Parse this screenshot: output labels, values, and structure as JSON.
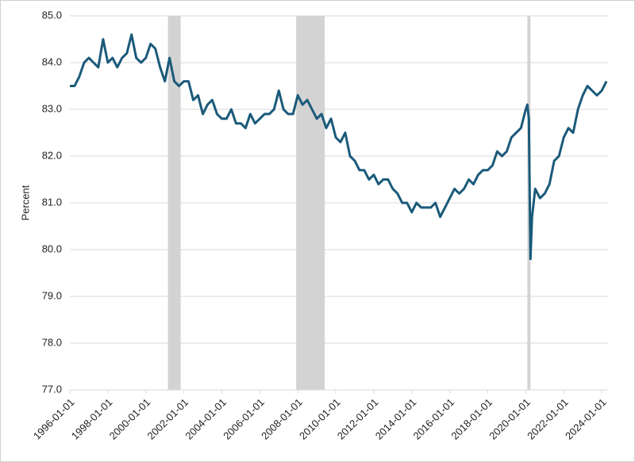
{
  "chart_data": {
    "type": "line",
    "y_label": "Percent",
    "color": "#1b5a7a",
    "grid": true,
    "shade_color": "#d3d3d3",
    "shaded_periods": [
      {
        "start": "2001-03-01",
        "end": "2001-11-01"
      },
      {
        "start": "2007-12-01",
        "end": "2009-06-01"
      },
      {
        "start": "2020-02-01",
        "end": "2020-04-01"
      }
    ],
    "xlim": [
      "1996-01-01",
      "2024-05-01"
    ],
    "xticks": [
      "1996-01-01",
      "1998-01-01",
      "2000-01-01",
      "2002-01-01",
      "2004-01-01",
      "2006-01-01",
      "2008-01-01",
      "2010-01-01",
      "2012-01-01",
      "2014-01-01",
      "2016-01-01",
      "2018-01-01",
      "2020-01-01",
      "2022-01-01",
      "2024-01-01"
    ],
    "ylim": [
      77,
      85
    ],
    "yticks": [
      {
        "value": 77,
        "label": "77.0"
      },
      {
        "value": 78,
        "label": "78.0"
      },
      {
        "value": 79,
        "label": "79.0"
      },
      {
        "value": 80,
        "label": "80.0"
      },
      {
        "value": 81,
        "label": "81.0"
      },
      {
        "value": 82,
        "label": "82.0"
      },
      {
        "value": 83,
        "label": "83.0"
      },
      {
        "value": 84,
        "label": "84.0"
      },
      {
        "value": 85,
        "label": "85.0"
      }
    ],
    "x": [
      "1996-01-01",
      "1996-04-01",
      "1996-07-01",
      "1996-10-01",
      "1997-01-01",
      "1997-04-01",
      "1997-07-01",
      "1997-10-01",
      "1998-01-01",
      "1998-04-01",
      "1998-07-01",
      "1998-10-01",
      "1999-01-01",
      "1999-04-01",
      "1999-07-01",
      "1999-10-01",
      "2000-01-01",
      "2000-04-01",
      "2000-07-01",
      "2000-10-01",
      "2001-01-01",
      "2001-04-01",
      "2001-07-01",
      "2001-10-01",
      "2002-01-01",
      "2002-04-01",
      "2002-07-01",
      "2002-10-01",
      "2003-01-01",
      "2003-04-01",
      "2003-07-01",
      "2003-10-01",
      "2004-01-01",
      "2004-04-01",
      "2004-07-01",
      "2004-10-01",
      "2005-01-01",
      "2005-04-01",
      "2005-07-01",
      "2005-10-01",
      "2006-01-01",
      "2006-04-01",
      "2006-07-01",
      "2006-10-01",
      "2007-01-01",
      "2007-04-01",
      "2007-07-01",
      "2007-10-01",
      "2008-01-01",
      "2008-04-01",
      "2008-07-01",
      "2008-10-01",
      "2009-01-01",
      "2009-04-01",
      "2009-07-01",
      "2009-10-01",
      "2010-01-01",
      "2010-04-01",
      "2010-07-01",
      "2010-10-01",
      "2011-01-01",
      "2011-04-01",
      "2011-07-01",
      "2011-10-01",
      "2012-01-01",
      "2012-04-01",
      "2012-07-01",
      "2012-10-01",
      "2013-01-01",
      "2013-04-01",
      "2013-07-01",
      "2013-10-01",
      "2014-01-01",
      "2014-04-01",
      "2014-07-01",
      "2014-10-01",
      "2015-01-01",
      "2015-04-01",
      "2015-07-01",
      "2015-10-01",
      "2016-01-01",
      "2016-04-01",
      "2016-07-01",
      "2016-10-01",
      "2017-01-01",
      "2017-04-01",
      "2017-07-01",
      "2017-10-01",
      "2018-01-01",
      "2018-04-01",
      "2018-07-01",
      "2018-10-01",
      "2019-01-01",
      "2019-04-01",
      "2019-07-01",
      "2019-10-01",
      "2020-01-01",
      "2020-02-01",
      "2020-03-01",
      "2020-04-01",
      "2020-05-01",
      "2020-07-01",
      "2020-10-01",
      "2021-01-01",
      "2021-04-01",
      "2021-07-01",
      "2021-10-01",
      "2022-01-01",
      "2022-04-01",
      "2022-07-01",
      "2022-10-01",
      "2023-01-01",
      "2023-04-01",
      "2023-07-01",
      "2023-10-01",
      "2024-01-01",
      "2024-04-01"
    ],
    "values": [
      83.5,
      83.5,
      83.7,
      84.0,
      84.1,
      84.0,
      83.9,
      84.5,
      84.0,
      84.1,
      83.9,
      84.1,
      84.2,
      84.6,
      84.1,
      84.0,
      84.1,
      84.4,
      84.3,
      83.9,
      83.6,
      84.1,
      83.6,
      83.5,
      83.6,
      83.6,
      83.2,
      83.3,
      82.9,
      83.1,
      83.2,
      82.9,
      82.8,
      82.8,
      83.0,
      82.7,
      82.7,
      82.6,
      82.9,
      82.7,
      82.8,
      82.9,
      82.9,
      83.0,
      83.4,
      83.0,
      82.9,
      82.9,
      83.3,
      83.1,
      83.2,
      83.0,
      82.8,
      82.9,
      82.6,
      82.8,
      82.4,
      82.3,
      82.5,
      82.0,
      81.9,
      81.7,
      81.7,
      81.5,
      81.6,
      81.4,
      81.5,
      81.5,
      81.3,
      81.2,
      81.0,
      81.0,
      80.8,
      81.0,
      80.9,
      80.9,
      80.9,
      81.0,
      80.7,
      80.9,
      81.1,
      81.3,
      81.2,
      81.3,
      81.5,
      81.4,
      81.6,
      81.7,
      81.7,
      81.8,
      82.1,
      82.0,
      82.1,
      82.4,
      82.5,
      82.6,
      83.0,
      83.1,
      82.8,
      79.8,
      80.7,
      81.3,
      81.1,
      81.2,
      81.4,
      81.9,
      82.0,
      82.4,
      82.6,
      82.5,
      83.0,
      83.3,
      83.5,
      83.4,
      83.3,
      83.4,
      83.6
    ]
  }
}
